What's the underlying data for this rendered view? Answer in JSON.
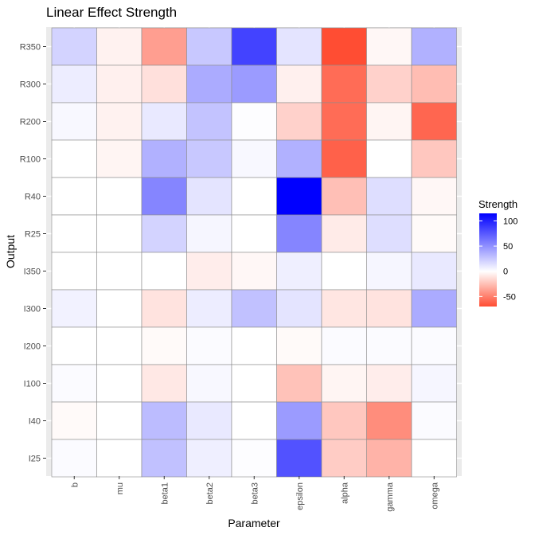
{
  "chart_data": {
    "type": "heatmap",
    "title": "Linear Effect Strength",
    "xlabel": "Parameter",
    "ylabel": "Output",
    "x_categories": [
      "b",
      "mu",
      "beta1",
      "beta2",
      "beta3",
      "epsilon",
      "alpha",
      "gamma",
      "omega"
    ],
    "y_categories": [
      "R350",
      "R300",
      "R200",
      "R100",
      "R40",
      "R25",
      "I350",
      "I300",
      "I200",
      "I100",
      "I40",
      "I25"
    ],
    "values": [
      [
        20,
        -5,
        -38,
        25,
        85,
        12,
        -70,
        -3,
        35
      ],
      [
        8,
        -6,
        -12,
        38,
        45,
        -6,
        -58,
        -18,
        -26
      ],
      [
        3,
        -5,
        10,
        27,
        1,
        -18,
        -58,
        -4,
        -60
      ],
      [
        0,
        -4,
        35,
        25,
        3,
        35,
        -62,
        0,
        -22
      ],
      [
        0,
        0,
        55,
        12,
        0,
        115,
        -25,
        15,
        -3
      ],
      [
        0,
        0,
        20,
        4,
        0,
        55,
        -8,
        15,
        -2
      ],
      [
        0,
        0,
        0,
        -7,
        -3,
        7,
        0,
        4,
        10
      ],
      [
        6,
        0,
        -11,
        8,
        28,
        12,
        -10,
        -11,
        38
      ],
      [
        0,
        0,
        -2,
        2,
        0,
        -2,
        2,
        2,
        2
      ],
      [
        2,
        0,
        -9,
        3,
        0,
        -24,
        -4,
        -7,
        4
      ],
      [
        -2,
        0,
        30,
        10,
        0,
        45,
        -22,
        -45,
        2
      ],
      [
        2,
        0,
        28,
        7,
        1,
        78,
        -20,
        -30,
        0
      ]
    ],
    "legend": {
      "title": "Strength",
      "ticks": [
        100,
        50,
        0,
        -50
      ],
      "range": [
        -70,
        115
      ],
      "colors": {
        "low": "#ff4d33",
        "mid": "#ffffff",
        "high": "#0000ff"
      }
    },
    "grid": true,
    "legend_position": "right"
  }
}
